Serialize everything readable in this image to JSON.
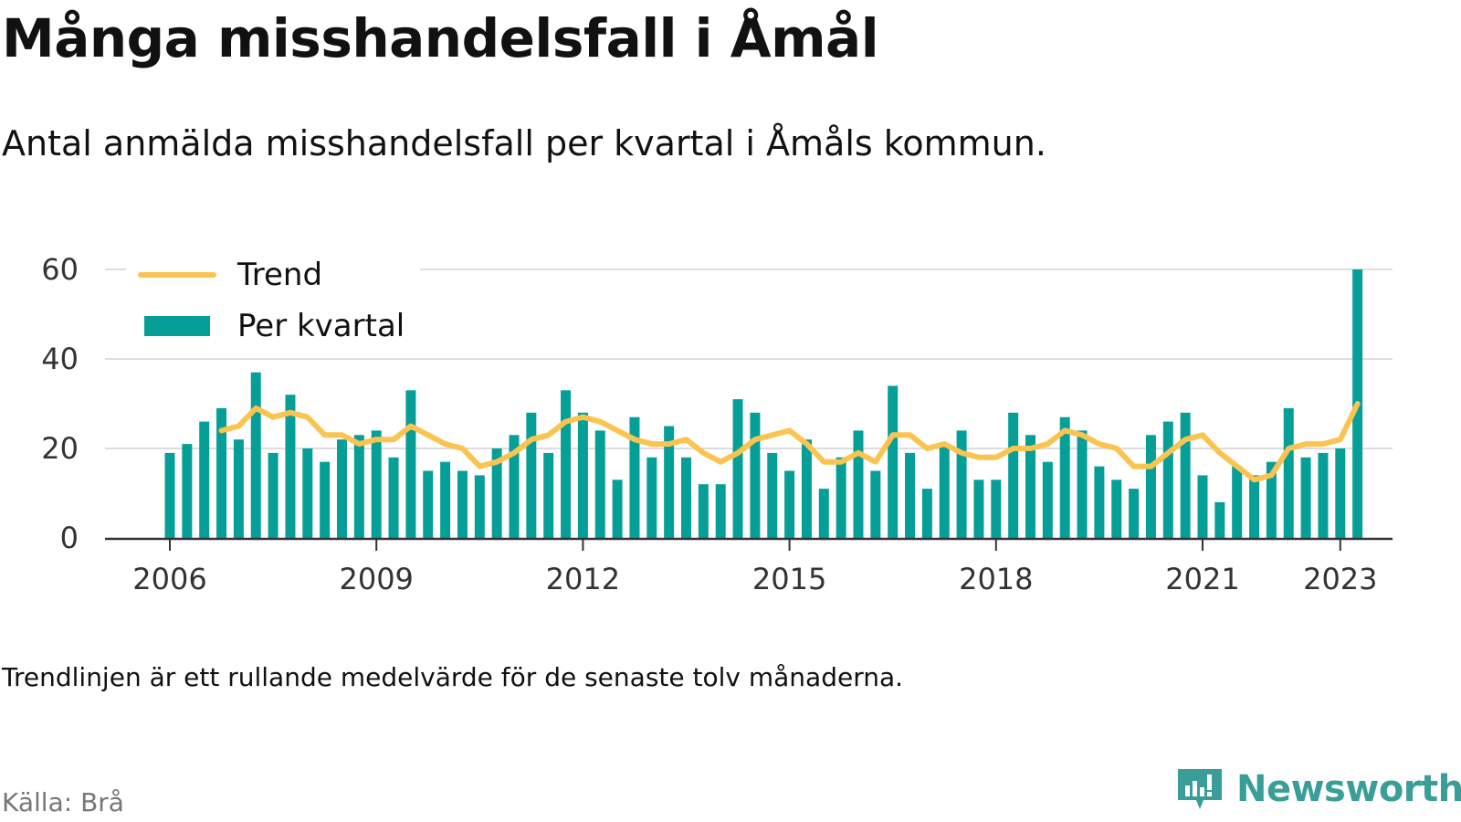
{
  "title": "Många misshandelsfall i Åmål",
  "subtitle": "Antal anmälda misshandelsfall per kvartal i Åmåls kommun.",
  "note": "Trendlinjen är ett rullande medelvärde för de senaste tolv månaderna.",
  "source": "Källa: Brå",
  "brand": {
    "name": "Newsworthy",
    "icon": "newsworthy-logo-icon",
    "color": "#3a9e98"
  },
  "colors": {
    "bars": "#059f98",
    "trend": "#fbc34f",
    "grid": "#dddddd",
    "axis": "#333333"
  },
  "chart_data": {
    "type": "bar",
    "title": "Många misshandelsfall i Åmål",
    "grid": true,
    "legend_position": "top-left",
    "ylim": [
      0,
      60
    ],
    "yticks": [
      "0",
      "20",
      "40",
      "60"
    ],
    "xticks": [
      "2006",
      "2009",
      "2012",
      "2015",
      "2018",
      "2021",
      "2023"
    ],
    "x": [
      "2006 Q1",
      "2006 Q2",
      "2006 Q3",
      "2006 Q4",
      "2007 Q1",
      "2007 Q2",
      "2007 Q3",
      "2007 Q4",
      "2008 Q1",
      "2008 Q2",
      "2008 Q3",
      "2008 Q4",
      "2009 Q1",
      "2009 Q2",
      "2009 Q3",
      "2009 Q4",
      "2010 Q1",
      "2010 Q2",
      "2010 Q3",
      "2010 Q4",
      "2011 Q1",
      "2011 Q2",
      "2011 Q3",
      "2011 Q4",
      "2012 Q1",
      "2012 Q2",
      "2012 Q3",
      "2012 Q4",
      "2013 Q1",
      "2013 Q2",
      "2013 Q3",
      "2013 Q4",
      "2014 Q1",
      "2014 Q2",
      "2014 Q3",
      "2014 Q4",
      "2015 Q1",
      "2015 Q2",
      "2015 Q3",
      "2015 Q4",
      "2016 Q1",
      "2016 Q2",
      "2016 Q3",
      "2016 Q4",
      "2017 Q1",
      "2017 Q2",
      "2017 Q3",
      "2017 Q4",
      "2018 Q1",
      "2018 Q2",
      "2018 Q3",
      "2018 Q4",
      "2019 Q1",
      "2019 Q2",
      "2019 Q3",
      "2019 Q4",
      "2020 Q1",
      "2020 Q2",
      "2020 Q3",
      "2020 Q4",
      "2021 Q1",
      "2021 Q2",
      "2021 Q3",
      "2021 Q4",
      "2022 Q1",
      "2022 Q2",
      "2022 Q3",
      "2022 Q4",
      "2023 Q1",
      "2023 Q2"
    ],
    "series": [
      {
        "name": "Per kvartal",
        "type": "bar",
        "values": [
          19,
          21,
          26,
          29,
          22,
          37,
          19,
          32,
          20,
          17,
          22,
          23,
          24,
          18,
          33,
          15,
          17,
          15,
          14,
          20,
          23,
          28,
          19,
          33,
          28,
          24,
          13,
          27,
          18,
          25,
          18,
          12,
          12,
          31,
          28,
          19,
          15,
          22,
          11,
          18,
          24,
          15,
          34,
          19,
          11,
          21,
          24,
          13,
          13,
          28,
          23,
          17,
          27,
          24,
          16,
          13,
          11,
          23,
          26,
          28,
          14,
          8,
          16,
          14,
          17,
          29,
          18,
          19,
          20,
          60
        ]
      },
      {
        "name": "Trend",
        "type": "line",
        "values": [
          null,
          null,
          null,
          24,
          25,
          29,
          27,
          28,
          27,
          23,
          23,
          21,
          22,
          22,
          25,
          23,
          21,
          20,
          16,
          17,
          19,
          22,
          23,
          26,
          27,
          26,
          24,
          22,
          21,
          21,
          22,
          19,
          17,
          19,
          22,
          23,
          24,
          21,
          17,
          17,
          19,
          17,
          23,
          23,
          20,
          21,
          19,
          18,
          18,
          20,
          20,
          21,
          24,
          23,
          21,
          20,
          16,
          16,
          19,
          22,
          23,
          19,
          16,
          13,
          14,
          20,
          21,
          21,
          22,
          30
        ]
      }
    ]
  }
}
